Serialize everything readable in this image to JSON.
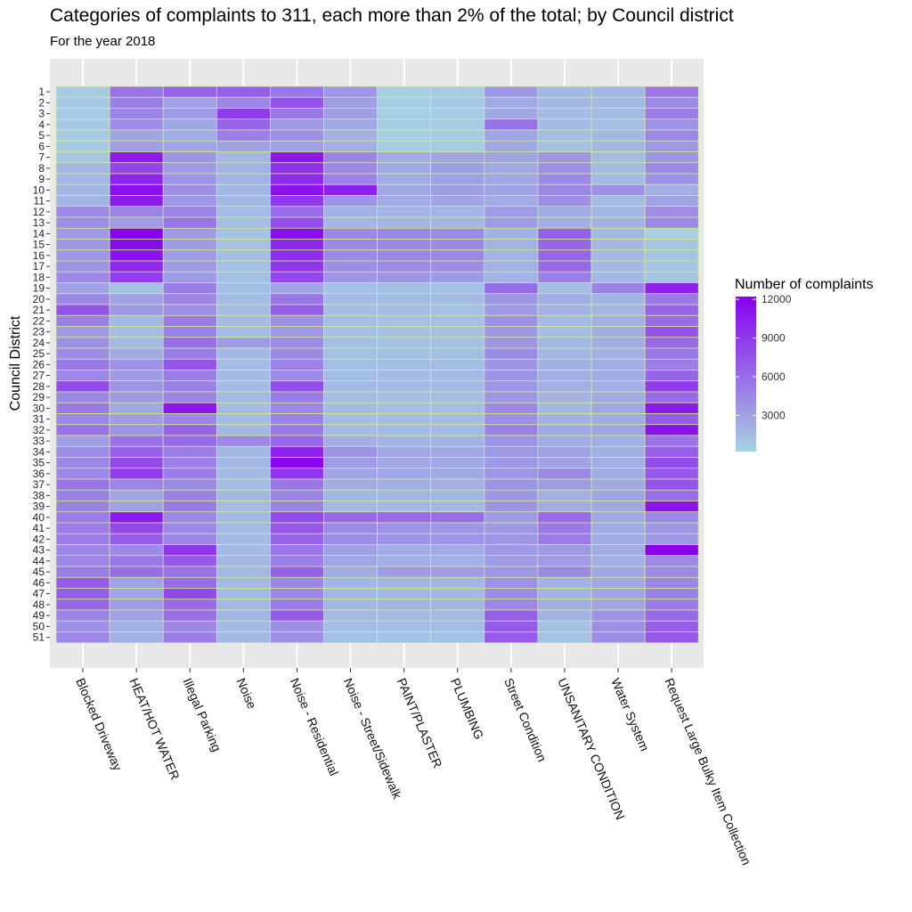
{
  "chart_data": {
    "type": "heatmap",
    "title": "Categories of complaints to 311, each more than 2% of the total; by Council district",
    "subtitle": "For the year 2018",
    "xlabel": "",
    "ylabel": "Council District",
    "legend": {
      "title": "Number of complaints",
      "position": "right",
      "ticks": [
        3000,
        6000,
        9000,
        12000
      ],
      "range": [
        0,
        12000
      ]
    },
    "colors": {
      "low": "#a7d3e2",
      "high": "#8800ee",
      "tile_border": "#d8ef8a",
      "panel": "#e8e8e8",
      "grid": "#ffffff"
    },
    "categories": [
      "Blocked Driveway",
      "HEAT/HOT WATER",
      "Illegal Parking",
      "Noise",
      "Noise - Residential",
      "Noise - Street/Sidewalk",
      "PAINT/PLASTER",
      "PLUMBING",
      "Street Condition",
      "UNSANITARY CONDITION",
      "Water System",
      "Request Large Bulky Item Collection"
    ],
    "districts": [
      "1",
      "2",
      "3",
      "4",
      "5",
      "6",
      "7",
      "8",
      "9",
      "10",
      "11",
      "12",
      "13",
      "14",
      "15",
      "16",
      "17",
      "18",
      "19",
      "20",
      "21",
      "22",
      "23",
      "24",
      "25",
      "26",
      "27",
      "28",
      "29",
      "30",
      "31",
      "32",
      "33",
      "34",
      "35",
      "36",
      "37",
      "38",
      "39",
      "40",
      "41",
      "42",
      "43",
      "44",
      "45",
      "46",
      "47",
      "48",
      "49",
      "50",
      "51"
    ],
    "values": [
      [
        500,
        5400,
        6400,
        6600,
        5300,
        3500,
        300,
        500,
        3400,
        1500,
        1700,
        5200
      ],
      [
        500,
        4800,
        2800,
        4300,
        7200,
        3000,
        300,
        500,
        2300,
        1500,
        1400,
        4100
      ],
      [
        500,
        4500,
        3200,
        8600,
        5200,
        3000,
        300,
        500,
        2400,
        1300,
        1400,
        4900
      ],
      [
        500,
        4000,
        2600,
        6200,
        3100,
        2400,
        300,
        400,
        5600,
        1300,
        1200,
        3700
      ],
      [
        500,
        2700,
        2300,
        4800,
        3800,
        2000,
        300,
        400,
        2600,
        1200,
        1500,
        4300
      ],
      [
        500,
        3000,
        2700,
        2800,
        2900,
        2100,
        300,
        400,
        2400,
        1100,
        1500,
        3300
      ],
      [
        700,
        10500,
        3500,
        1600,
        10700,
        4600,
        2300,
        2700,
        2800,
        3400,
        1400,
        3600
      ],
      [
        1500,
        8000,
        3200,
        1900,
        9200,
        4400,
        2400,
        3000,
        2400,
        3800,
        1400,
        4200
      ],
      [
        1500,
        9900,
        3600,
        1700,
        9500,
        4600,
        2300,
        2900,
        2500,
        4200,
        1300,
        3600
      ],
      [
        1500,
        11100,
        3800,
        1600,
        11000,
        10200,
        2500,
        3000,
        2800,
        4200,
        3800,
        2100
      ],
      [
        1800,
        10300,
        3300,
        1500,
        8800,
        3600,
        2300,
        2700,
        2300,
        3800,
        1300,
        2700
      ],
      [
        4200,
        4500,
        4500,
        1300,
        5900,
        2000,
        1800,
        1800,
        3200,
        2300,
        1600,
        4000
      ],
      [
        4000,
        3100,
        5300,
        1200,
        7600,
        1700,
        1600,
        1600,
        3100,
        2100,
        1900,
        4400
      ],
      [
        3300,
        12000,
        3100,
        1100,
        11200,
        4300,
        4200,
        4100,
        1800,
        6500,
        1500,
        200
      ],
      [
        3400,
        11500,
        3200,
        1100,
        9700,
        4400,
        4300,
        4200,
        1900,
        6200,
        1600,
        900
      ],
      [
        3400,
        10900,
        3200,
        1200,
        9400,
        4200,
        4400,
        4300,
        1800,
        6300,
        1500,
        800
      ],
      [
        3600,
        9600,
        3300,
        1100,
        8900,
        4000,
        4100,
        4000,
        1900,
        6100,
        1500,
        900
      ],
      [
        4200,
        8400,
        3100,
        1100,
        7900,
        3500,
        3400,
        3300,
        1800,
        4800,
        1500,
        800
      ],
      [
        2900,
        1000,
        4900,
        1200,
        2600,
        1000,
        1200,
        1100,
        5900,
        1200,
        4600,
        10200
      ],
      [
        4300,
        2800,
        4300,
        1300,
        5300,
        1300,
        1400,
        1400,
        3600,
        2100,
        1800,
        5200
      ],
      [
        7300,
        3400,
        3800,
        1200,
        6700,
        1200,
        1200,
        1100,
        3100,
        1800,
        1700,
        6300
      ],
      [
        4800,
        1500,
        5000,
        1300,
        3900,
        1200,
        1100,
        1100,
        3800,
        1400,
        2000,
        5900
      ],
      [
        3300,
        1200,
        4600,
        1200,
        3300,
        1000,
        1000,
        1000,
        3400,
        1200,
        2200,
        7300
      ],
      [
        3700,
        1500,
        5700,
        3100,
        4100,
        1200,
        1100,
        1100,
        3600,
        1600,
        2200,
        6100
      ],
      [
        4000,
        2400,
        4900,
        1500,
        4200,
        1100,
        1200,
        1200,
        4100,
        1700,
        2000,
        5300
      ],
      [
        5200,
        3700,
        7200,
        1400,
        4600,
        1200,
        1200,
        1200,
        3500,
        2000,
        2200,
        4900
      ],
      [
        4400,
        3100,
        4900,
        1300,
        4100,
        1200,
        1300,
        1300,
        3600,
        2000,
        2200,
        6200
      ],
      [
        7800,
        3600,
        4600,
        1300,
        7600,
        1300,
        1400,
        1400,
        3500,
        2100,
        2100,
        8600
      ],
      [
        4300,
        3300,
        4600,
        1400,
        5000,
        1200,
        1200,
        1200,
        3500,
        1900,
        2300,
        6000
      ],
      [
        5100,
        2400,
        10900,
        1300,
        4300,
        1300,
        1200,
        1200,
        4300,
        1500,
        2500,
        10600
      ],
      [
        4400,
        3100,
        4400,
        1300,
        4700,
        1200,
        1300,
        1300,
        3900,
        2000,
        2200,
        6800
      ],
      [
        5500,
        3600,
        6200,
        1500,
        5200,
        1300,
        1400,
        1400,
        4600,
        2400,
        2700,
        11000
      ],
      [
        3000,
        5500,
        5900,
        4200,
        6100,
        2100,
        1800,
        1800,
        3600,
        2300,
        2000,
        5600
      ],
      [
        4000,
        6500,
        4800,
        1500,
        10100,
        3600,
        2500,
        2400,
        3300,
        2800,
        2000,
        6600
      ],
      [
        4300,
        7800,
        4700,
        1500,
        11700,
        3200,
        2500,
        2400,
        3300,
        2800,
        2100,
        7800
      ],
      [
        4300,
        8600,
        5000,
        1400,
        9000,
        2700,
        2500,
        2400,
        3500,
        4200,
        2300,
        7000
      ],
      [
        5300,
        4500,
        4200,
        1300,
        5300,
        2200,
        2100,
        2000,
        3600,
        3100,
        2400,
        7200
      ],
      [
        4700,
        2700,
        4600,
        1500,
        4500,
        1600,
        1700,
        1700,
        3400,
        2000,
        2700,
        5800
      ],
      [
        4600,
        2900,
        5000,
        1400,
        4600,
        1500,
        1600,
        1600,
        3600,
        2200,
        2500,
        10900
      ],
      [
        5000,
        10500,
        4400,
        1400,
        7800,
        6100,
        6000,
        5800,
        3200,
        6000,
        2400,
        4400
      ],
      [
        5000,
        7900,
        4300,
        1400,
        7000,
        4100,
        3600,
        3400,
        3300,
        5100,
        2200,
        3400
      ],
      [
        4800,
        6700,
        4400,
        1400,
        6300,
        4000,
        3700,
        3500,
        3500,
        5000,
        2200,
        3400
      ],
      [
        4400,
        4100,
        8900,
        1400,
        5200,
        2800,
        2300,
        2200,
        3300,
        3300,
        2200,
        12000
      ],
      [
        4300,
        5100,
        7000,
        1500,
        4800,
        2600,
        2100,
        2000,
        3200,
        3200,
        2100,
        4200
      ],
      [
        4900,
        5800,
        5600,
        1500,
        6400,
        2300,
        3300,
        3200,
        3500,
        4200,
        2500,
        4200
      ],
      [
        6900,
        2900,
        5900,
        1400,
        4300,
        1700,
        1600,
        1600,
        3800,
        1900,
        2500,
        4400
      ],
      [
        6700,
        2700,
        7900,
        1400,
        4400,
        1500,
        1500,
        1500,
        4000,
        1800,
        2600,
        4600
      ],
      [
        6100,
        3200,
        6000,
        1400,
        5000,
        1600,
        1800,
        1700,
        4300,
        2300,
        2700,
        5000
      ],
      [
        4500,
        2800,
        5800,
        1600,
        6900,
        1400,
        1400,
        1400,
        6600,
        1800,
        3700,
        6100
      ],
      [
        3800,
        2000,
        4400,
        1400,
        3800,
        1200,
        1200,
        1200,
        6900,
        1100,
        3900,
        6700
      ],
      [
        4400,
        2000,
        4900,
        1500,
        3800,
        1100,
        1000,
        1000,
        6800,
        900,
        4000,
        7000
      ]
    ]
  }
}
